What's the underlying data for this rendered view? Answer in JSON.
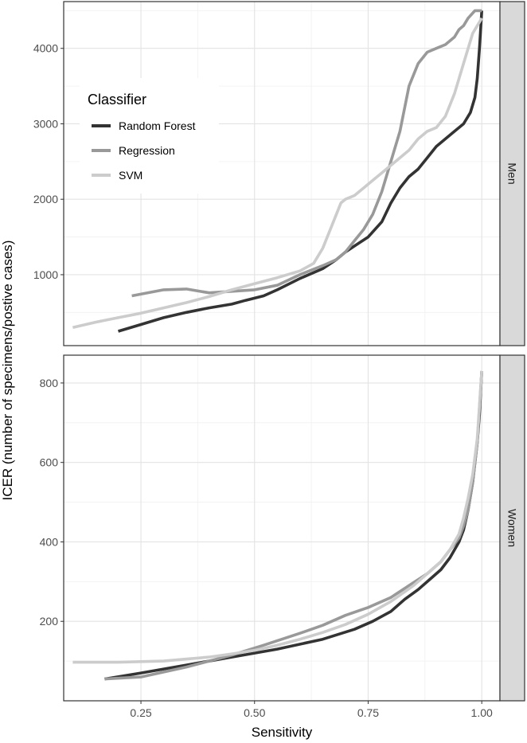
{
  "chart_data": {
    "type": "line",
    "xlabel": "Sensitivity",
    "ylabel": "ICER (number of specimens/postive cases)",
    "x_ticks": [
      0.25,
      0.5,
      0.75,
      1.0
    ],
    "x_tick_labels": [
      "0.25",
      "0.50",
      "0.75",
      "1.00"
    ],
    "xlim": [
      0.08,
      1.04
    ],
    "grid": true,
    "legend": {
      "title": "Classifier",
      "position": "top-left",
      "entries": [
        "Random Forest",
        "Regression",
        "SVM"
      ]
    },
    "colors": {
      "Random Forest": "#333333",
      "Regression": "#999999",
      "SVM": "#cccccc"
    },
    "panels": [
      {
        "strip": "Men",
        "ylim": [
          60,
          4620
        ],
        "y_ticks": [
          1000,
          2000,
          3000,
          4000
        ],
        "y_tick_labels": [
          "1000",
          "2000",
          "3000",
          "4000"
        ],
        "series": [
          {
            "name": "Random Forest",
            "x": [
              0.2,
              0.25,
              0.3,
              0.35,
              0.4,
              0.45,
              0.48,
              0.52,
              0.55,
              0.6,
              0.65,
              0.68,
              0.7,
              0.72,
              0.75,
              0.78,
              0.8,
              0.82,
              0.84,
              0.86,
              0.88,
              0.9,
              0.92,
              0.94,
              0.96,
              0.975,
              0.985,
              0.99,
              0.995,
              1.0
            ],
            "y": [
              250,
              340,
              430,
              500,
              560,
              610,
              660,
              720,
              800,
              950,
              1080,
              1200,
              1300,
              1380,
              1500,
              1700,
              1950,
              2150,
              2300,
              2400,
              2550,
              2700,
              2800,
              2900,
              3000,
              3150,
              3350,
              3600,
              4000,
              4500
            ]
          },
          {
            "name": "Regression",
            "x": [
              0.23,
              0.3,
              0.35,
              0.4,
              0.45,
              0.5,
              0.55,
              0.6,
              0.65,
              0.68,
              0.7,
              0.72,
              0.74,
              0.76,
              0.78,
              0.8,
              0.82,
              0.83,
              0.84,
              0.86,
              0.88,
              0.9,
              0.92,
              0.94,
              0.95,
              0.96,
              0.97,
              0.985,
              1.0
            ],
            "y": [
              720,
              800,
              810,
              760,
              780,
              800,
              860,
              1000,
              1120,
              1200,
              1300,
              1450,
              1600,
              1800,
              2100,
              2500,
              2900,
              3200,
              3500,
              3800,
              3950,
              4000,
              4050,
              4150,
              4250,
              4300,
              4400,
              4500,
              4500
            ]
          },
          {
            "name": "SVM",
            "x": [
              0.1,
              0.15,
              0.2,
              0.25,
              0.3,
              0.35,
              0.4,
              0.45,
              0.5,
              0.55,
              0.6,
              0.63,
              0.65,
              0.67,
              0.69,
              0.7,
              0.72,
              0.74,
              0.76,
              0.78,
              0.8,
              0.82,
              0.84,
              0.86,
              0.88,
              0.9,
              0.92,
              0.94,
              0.96,
              0.98,
              1.0
            ],
            "y": [
              300,
              370,
              430,
              490,
              560,
              630,
              710,
              800,
              880,
              960,
              1050,
              1150,
              1350,
              1650,
              1950,
              2000,
              2050,
              2150,
              2250,
              2350,
              2450,
              2550,
              2650,
              2800,
              2900,
              2950,
              3100,
              3400,
              3800,
              4200,
              4400
            ]
          }
        ]
      },
      {
        "strip": "Women",
        "ylim": [
          0,
          870
        ],
        "y_ticks": [
          200,
          400,
          600,
          800
        ],
        "y_tick_labels": [
          "200",
          "400",
          "600",
          "800"
        ],
        "series": [
          {
            "name": "Random Forest",
            "x": [
              0.17,
              0.25,
              0.35,
              0.45,
              0.55,
              0.65,
              0.72,
              0.76,
              0.8,
              0.83,
              0.86,
              0.89,
              0.91,
              0.93,
              0.95,
              0.96,
              0.97,
              0.98,
              0.99,
              0.995,
              1.0
            ],
            "y": [
              55,
              70,
              90,
              110,
              130,
              155,
              180,
              200,
              225,
              255,
              280,
              310,
              330,
              360,
              400,
              430,
              480,
              550,
              650,
              720,
              830
            ]
          },
          {
            "name": "Regression",
            "x": [
              0.17,
              0.25,
              0.35,
              0.45,
              0.52,
              0.6,
              0.65,
              0.7,
              0.75,
              0.8,
              0.84,
              0.88,
              0.91,
              0.93,
              0.95,
              0.96,
              0.97,
              0.98,
              0.99,
              1.0
            ],
            "y": [
              55,
              60,
              85,
              115,
              140,
              170,
              190,
              215,
              235,
              260,
              290,
              320,
              350,
              380,
              410,
              440,
              480,
              550,
              650,
              830
            ]
          },
          {
            "name": "SVM",
            "x": [
              0.1,
              0.2,
              0.3,
              0.35,
              0.4,
              0.45,
              0.5,
              0.55,
              0.6,
              0.65,
              0.7,
              0.75,
              0.8,
              0.85,
              0.88,
              0.91,
              0.93,
              0.95,
              0.96,
              0.97,
              0.98,
              0.99,
              1.0
            ],
            "y": [
              97,
              97,
              100,
              105,
              110,
              118,
              127,
              140,
              155,
              172,
              192,
              218,
              250,
              290,
              320,
              350,
              380,
              420,
              460,
              510,
              570,
              660,
              830
            ]
          }
        ]
      }
    ]
  }
}
